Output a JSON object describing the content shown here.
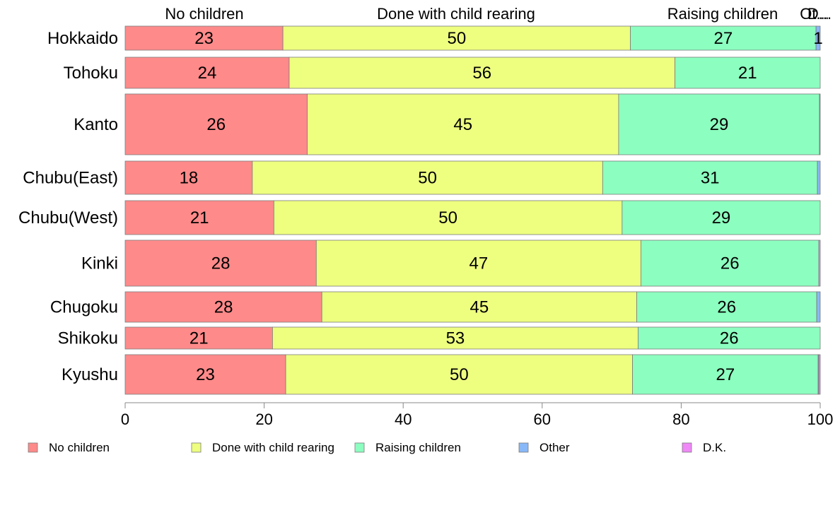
{
  "chart_data": {
    "type": "bar",
    "orientation": "horizontal",
    "stacked": true,
    "categories": [
      "Hokkaido",
      "Tohoku",
      "Kanto",
      "Chubu(East)",
      "Chubu(West)",
      "Kinki",
      "Chugoku",
      "Shikoku",
      "Kyushu"
    ],
    "series": [
      {
        "name": "No children",
        "color": "#ff8a8a",
        "values": [
          22.7,
          23.6,
          26.2,
          18.3,
          21.4,
          27.5,
          28.3,
          21.2,
          23.1
        ],
        "labels": [
          "23",
          "24",
          "26",
          "18",
          "21",
          "28",
          "28",
          "21",
          "23"
        ]
      },
      {
        "name": "Done with child rearing",
        "color": "#eeff80",
        "values": [
          50.0,
          55.5,
          44.8,
          50.4,
          50.1,
          46.7,
          45.3,
          52.6,
          49.9
        ],
        "labels": [
          "50",
          "56",
          "45",
          "50",
          "50",
          "47",
          "45",
          "53",
          "50"
        ]
      },
      {
        "name": "Raising children",
        "color": "#8cffc0",
        "values": [
          26.7,
          20.9,
          28.9,
          30.9,
          28.5,
          25.6,
          25.9,
          26.2,
          26.7
        ],
        "labels": [
          "27",
          "21",
          "29",
          "31",
          "29",
          "26",
          "26",
          "26",
          "27"
        ]
      },
      {
        "name": "Other",
        "color": "#88b8f8",
        "values": [
          0.6,
          0.0,
          0.1,
          0.4,
          0.0,
          0.0,
          0.5,
          0.0,
          0.1
        ],
        "labels": [
          "1",
          "",
          "",
          "",
          "",
          "",
          "",
          "",
          ""
        ]
      },
      {
        "name": "D.K.",
        "color": "#f088f8",
        "values": [
          0.0,
          0.0,
          0.0,
          0.0,
          0.0,
          0.2,
          0.0,
          0.0,
          0.2
        ],
        "labels": [
          "",
          "",
          "",
          "",
          "",
          "",
          "",
          "",
          ""
        ]
      }
    ],
    "top_labels": [
      "No children",
      "Done with child rearing",
      "Raising children",
      "Ot...",
      "D..."
    ],
    "xlim": [
      0,
      100
    ],
    "xticks": [
      "0",
      "20",
      "40",
      "60",
      "80",
      "100"
    ],
    "legend": [
      "No children",
      "Done with child rearing",
      "Raising children",
      "Other",
      "D.K."
    ],
    "legend_position": "bottom",
    "grid": false
  }
}
